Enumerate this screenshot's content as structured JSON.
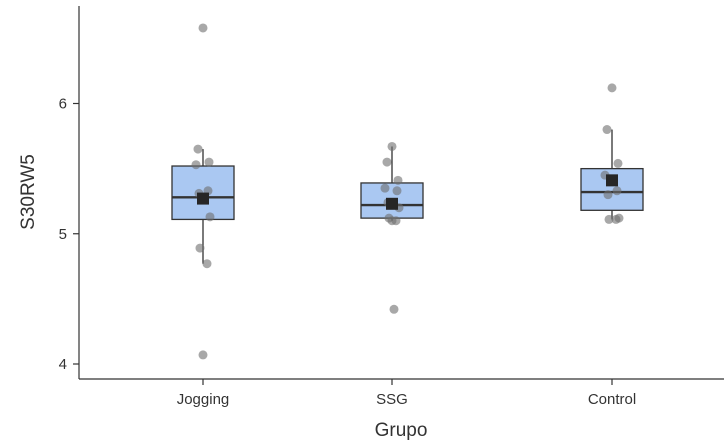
{
  "chart_data": {
    "type": "boxplot",
    "title": "",
    "xlabel": "Grupo",
    "ylabel": "S30RW5",
    "ylim": [
      3.95,
      6.75
    ],
    "yticks": [
      4,
      5,
      6
    ],
    "grid": false,
    "legend": "none",
    "colors": {
      "box_fill": "#aac8f2",
      "box_stroke": "#333333",
      "point": "#6e6e6e",
      "mean_marker": "#262626"
    },
    "categories": [
      "Jogging",
      "SSG",
      "Control"
    ],
    "groups": [
      {
        "name": "Jogging",
        "q1": 5.11,
        "median": 5.28,
        "q3": 5.52,
        "whisker_low": 4.77,
        "whisker_high": 5.65,
        "mean": 5.27,
        "points": [
          6.58,
          5.65,
          5.55,
          5.53,
          5.33,
          5.31,
          5.13,
          4.89,
          4.77,
          4.07
        ]
      },
      {
        "name": "SSG",
        "q1": 5.12,
        "median": 5.22,
        "q3": 5.39,
        "whisker_low": 5.1,
        "whisker_high": 5.67,
        "mean": 5.23,
        "points": [
          5.67,
          5.55,
          5.41,
          5.35,
          5.33,
          5.24,
          5.2,
          5.12,
          5.1,
          5.1,
          4.42
        ]
      },
      {
        "name": "Control",
        "q1": 5.18,
        "median": 5.32,
        "q3": 5.5,
        "whisker_low": 5.11,
        "whisker_high": 5.8,
        "mean": 5.41,
        "points": [
          6.12,
          5.8,
          5.54,
          5.45,
          5.33,
          5.3,
          5.12,
          5.11,
          5.11
        ]
      }
    ]
  }
}
